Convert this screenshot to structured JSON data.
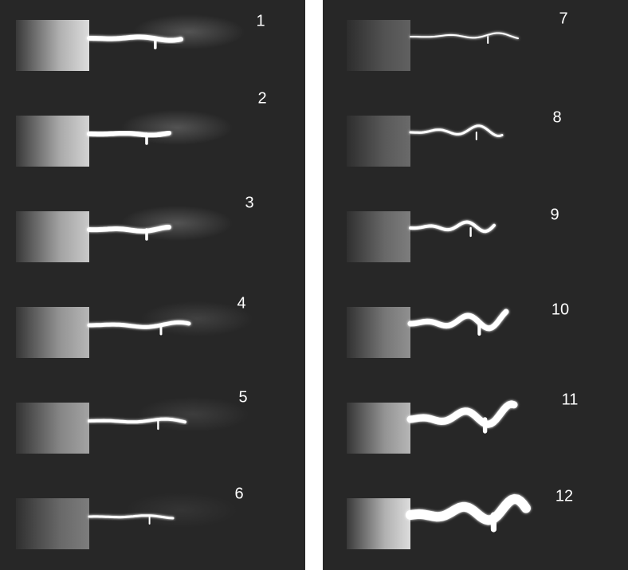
{
  "panels": [
    {
      "label": "1"
    },
    {
      "label": "2"
    },
    {
      "label": "3"
    },
    {
      "label": "4"
    },
    {
      "label": "5"
    },
    {
      "label": "6"
    },
    {
      "label": "7"
    },
    {
      "label": "8"
    },
    {
      "label": "9"
    },
    {
      "label": "10"
    },
    {
      "label": "11"
    },
    {
      "label": "12"
    }
  ]
}
